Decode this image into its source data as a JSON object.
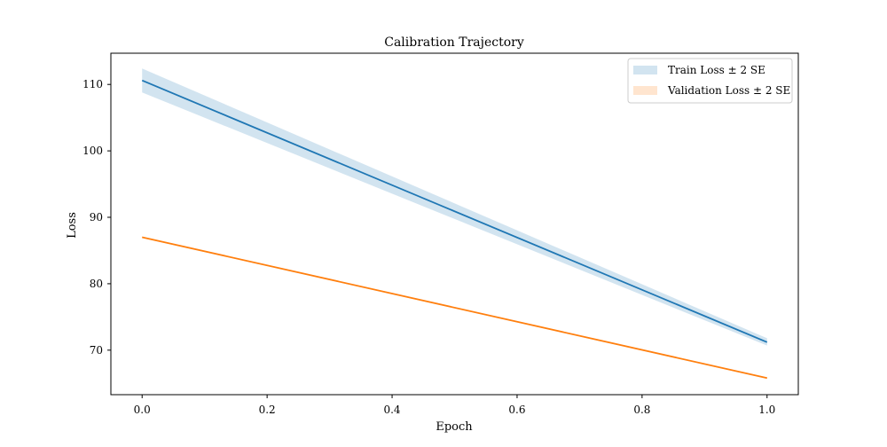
{
  "chart_data": {
    "type": "line",
    "title": "Calibration Trajectory",
    "xlabel": "Epoch",
    "ylabel": "Loss",
    "xlim": [
      -0.05,
      1.05
    ],
    "ylim": [
      63.3,
      114.7
    ],
    "xticks": [
      0.0,
      0.2,
      0.4,
      0.6,
      0.8,
      1.0
    ],
    "xtick_labels": [
      "0.0",
      "0.2",
      "0.4",
      "0.6",
      "0.8",
      "1.0"
    ],
    "yticks": [
      70,
      80,
      90,
      100,
      110
    ],
    "ytick_labels": [
      "70",
      "80",
      "90",
      "100",
      "110"
    ],
    "grid": false,
    "legend_placement": "top-right",
    "series": [
      {
        "name": "Train Loss ± 2 SE",
        "color": "#1f77b4",
        "band_color": "#1f77b4",
        "x": [
          0.0,
          1.0
        ],
        "y": [
          110.6,
          71.2
        ],
        "band_lower": [
          108.8,
          70.7
        ],
        "band_upper": [
          112.4,
          71.8
        ]
      },
      {
        "name": "Validation Loss ± 2 SE",
        "color": "#ff7f0e",
        "band_color": "#ff7f0e",
        "x": [
          0.0,
          1.0
        ],
        "y": [
          87.0,
          65.8
        ],
        "band_lower": [
          86.9,
          65.7
        ],
        "band_upper": [
          87.1,
          65.9
        ]
      }
    ]
  }
}
